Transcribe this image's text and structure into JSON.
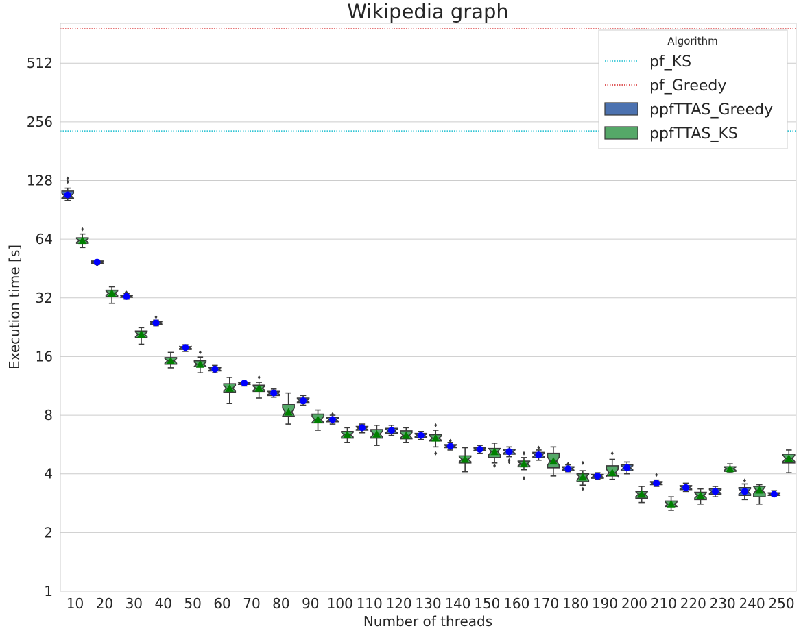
{
  "chart_data": {
    "type": "box",
    "title": "Wikipedia graph",
    "xlabel": "Number of threads",
    "ylabel": "Execution time [s]",
    "yscale": "log2",
    "ylim": [
      1,
      820
    ],
    "yticks": [
      1,
      2,
      4,
      8,
      16,
      32,
      64,
      128,
      256,
      512
    ],
    "ytick_labels": [
      "1",
      "2",
      "4",
      "8",
      "16",
      "32",
      "64",
      "128",
      "256",
      "512"
    ],
    "grid": "horizontal",
    "categories": [
      "10",
      "20",
      "30",
      "40",
      "50",
      "60",
      "70",
      "80",
      "90",
      "100",
      "110",
      "120",
      "130",
      "140",
      "150",
      "160",
      "170",
      "180",
      "190",
      "200",
      "210",
      "220",
      "230",
      "240",
      "250"
    ],
    "legend": {
      "title": "Algorithm",
      "placement": "top-right",
      "entries": [
        {
          "label": "pf_KS",
          "kind": "dotted-line",
          "color": "#17becf"
        },
        {
          "label": "pf_Greedy",
          "kind": "dotted-line",
          "color": "#d62728"
        },
        {
          "label": "ppfTTAS_Greedy",
          "kind": "box",
          "color": "#4c72b0"
        },
        {
          "label": "ppfTTAS_KS",
          "kind": "box",
          "color": "#55a868"
        }
      ]
    },
    "reference_lines": [
      {
        "name": "pf_KS",
        "value": 230,
        "color": "#17becf"
      },
      {
        "name": "pf_Greedy",
        "value": 768,
        "color": "#d62728"
      }
    ],
    "series": [
      {
        "name": "ppfTTAS_Greedy",
        "box_color": "#4c72b0",
        "mean_color": "#0000ff",
        "mean_marker": "circle",
        "boxes": [
          {
            "cat": "10",
            "whislo": 101,
            "q1": 104,
            "med": 107,
            "q3": 113,
            "whishi": 117,
            "mean": 108,
            "outliers": [
              126,
              131
            ]
          },
          {
            "cat": "20",
            "whislo": 47.5,
            "q1": 48,
            "med": 48.8,
            "q3": 49.5,
            "whishi": 50,
            "mean": 48.8,
            "outliers": [
              47.2
            ]
          },
          {
            "cat": "30",
            "whislo": 31.5,
            "q1": 32.2,
            "med": 32.5,
            "q3": 33,
            "whishi": 33.6,
            "mean": 32.5,
            "outliers": [
              34
            ]
          },
          {
            "cat": "40",
            "whislo": 23,
            "q1": 23.3,
            "med": 23.8,
            "q3": 24.2,
            "whishi": 24.6,
            "mean": 23.8,
            "outliers": [
              25.5
            ]
          },
          {
            "cat": "50",
            "whislo": 17,
            "q1": 17.4,
            "med": 17.8,
            "q3": 18,
            "whishi": 18.4,
            "mean": 17.8,
            "outliers": []
          },
          {
            "cat": "60",
            "whislo": 13.2,
            "q1": 13.5,
            "med": 13.8,
            "q3": 14.1,
            "whishi": 14.4,
            "mean": 13.8,
            "outliers": []
          },
          {
            "cat": "70",
            "whislo": 11.3,
            "q1": 11.5,
            "med": 11.7,
            "q3": 11.8,
            "whishi": 11.9,
            "mean": 11.7,
            "outliers": []
          },
          {
            "cat": "80",
            "whislo": 9.9,
            "q1": 10.1,
            "med": 10.4,
            "q3": 10.6,
            "whishi": 10.9,
            "mean": 10.4,
            "outliers": []
          },
          {
            "cat": "90",
            "whislo": 9,
            "q1": 9.3,
            "med": 9.5,
            "q3": 9.8,
            "whishi": 10.1,
            "mean": 9.5,
            "outliers": []
          },
          {
            "cat": "100",
            "whislo": 7.2,
            "q1": 7.4,
            "med": 7.6,
            "q3": 7.8,
            "whishi": 8,
            "mean": 7.6,
            "outliers": [
              8.1
            ]
          },
          {
            "cat": "110",
            "whislo": 6.5,
            "q1": 6.7,
            "med": 6.85,
            "q3": 7,
            "whishi": 7.2,
            "mean": 6.9,
            "outliers": []
          },
          {
            "cat": "120",
            "whislo": 6.3,
            "q1": 6.45,
            "med": 6.65,
            "q3": 6.85,
            "whishi": 7.1,
            "mean": 6.7,
            "outliers": []
          },
          {
            "cat": "130",
            "whislo": 6,
            "q1": 6.15,
            "med": 6.3,
            "q3": 6.45,
            "whishi": 6.6,
            "mean": 6.3,
            "outliers": []
          },
          {
            "cat": "140",
            "whislo": 5.3,
            "q1": 5.45,
            "med": 5.55,
            "q3": 5.65,
            "whishi": 5.8,
            "mean": 5.55,
            "outliers": [
              5.9
            ]
          },
          {
            "cat": "150",
            "whislo": 5.1,
            "q1": 5.25,
            "med": 5.35,
            "q3": 5.45,
            "whishi": 5.6,
            "mean": 5.35,
            "outliers": []
          },
          {
            "cat": "160",
            "whislo": 4.9,
            "q1": 5.05,
            "med": 5.2,
            "q3": 5.35,
            "whishi": 5.5,
            "mean": 5.2,
            "outliers": [
              4.7,
              4.6
            ]
          },
          {
            "cat": "170",
            "whislo": 4.7,
            "q1": 4.85,
            "med": 5,
            "q3": 5.15,
            "whishi": 5.3,
            "mean": 5,
            "outliers": [
              5.45
            ]
          },
          {
            "cat": "180",
            "whislo": 4.1,
            "q1": 4.15,
            "med": 4.25,
            "q3": 4.35,
            "whishi": 4.45,
            "mean": 4.25,
            "outliers": [
              4.5
            ]
          },
          {
            "cat": "190",
            "whislo": 3.75,
            "q1": 3.8,
            "med": 3.9,
            "q3": 3.97,
            "whishi": 4.05,
            "mean": 3.9,
            "outliers": []
          },
          {
            "cat": "200",
            "whislo": 4,
            "q1": 4.15,
            "med": 4.3,
            "q3": 4.45,
            "whishi": 4.6,
            "mean": 4.3,
            "outliers": []
          },
          {
            "cat": "210",
            "whislo": 3.45,
            "q1": 3.52,
            "med": 3.58,
            "q3": 3.65,
            "whishi": 3.72,
            "mean": 3.58,
            "outliers": [
              3.95
            ]
          },
          {
            "cat": "220",
            "whislo": 3.25,
            "q1": 3.32,
            "med": 3.4,
            "q3": 3.48,
            "whishi": 3.58,
            "mean": 3.4,
            "outliers": []
          },
          {
            "cat": "230",
            "whislo": 3.05,
            "q1": 3.15,
            "med": 3.25,
            "q3": 3.35,
            "whishi": 3.45,
            "mean": 3.25,
            "outliers": []
          },
          {
            "cat": "240",
            "whislo": 2.95,
            "q1": 3.1,
            "med": 3.25,
            "q3": 3.4,
            "whishi": 3.55,
            "mean": 3.25,
            "outliers": [
              3.7
            ]
          },
          {
            "cat": "250",
            "whislo": 3.05,
            "q1": 3.1,
            "med": 3.15,
            "q3": 3.2,
            "whishi": 3.28,
            "mean": 3.15,
            "outliers": []
          }
        ]
      },
      {
        "name": "ppfTTAS_KS",
        "box_color": "#55a868",
        "mean_color": "#008000",
        "mean_marker": "triangle",
        "boxes": [
          {
            "cat": "10",
            "whislo": 58,
            "q1": 61,
            "med": 63,
            "q3": 65,
            "whishi": 68,
            "mean": 63,
            "outliers": [
              72
            ]
          },
          {
            "cat": "20",
            "whislo": 30,
            "q1": 32.5,
            "med": 33.8,
            "q3": 35,
            "whishi": 36.5,
            "mean": 33.8,
            "outliers": []
          },
          {
            "cat": "30",
            "whislo": 18.5,
            "q1": 20,
            "med": 20.8,
            "q3": 21.6,
            "whishi": 22.5,
            "mean": 20.8,
            "outliers": []
          },
          {
            "cat": "40",
            "whislo": 14,
            "q1": 14.6,
            "med": 15.2,
            "q3": 15.8,
            "whishi": 16.8,
            "mean": 15.2,
            "outliers": []
          },
          {
            "cat": "50",
            "whislo": 13.2,
            "q1": 14.2,
            "med": 14.6,
            "q3": 15.2,
            "whishi": 15.9,
            "mean": 14.6,
            "outliers": [
              16.8
            ]
          },
          {
            "cat": "60",
            "whislo": 9.2,
            "q1": 10.5,
            "med": 11,
            "q3": 11.6,
            "whishi": 12.5,
            "mean": 11,
            "outliers": []
          },
          {
            "cat": "70",
            "whislo": 9.8,
            "q1": 10.6,
            "med": 11,
            "q3": 11.4,
            "whishi": 11.8,
            "mean": 11,
            "outliers": [
              12.5
            ]
          },
          {
            "cat": "80",
            "whislo": 7.2,
            "q1": 7.9,
            "med": 8.3,
            "q3": 9.1,
            "whishi": 10.4,
            "mean": 8.3,
            "outliers": []
          },
          {
            "cat": "90",
            "whislo": 6.7,
            "q1": 7.3,
            "med": 7.6,
            "q3": 8.1,
            "whishi": 8.5,
            "mean": 7.6,
            "outliers": []
          },
          {
            "cat": "100",
            "whislo": 5.8,
            "q1": 6.1,
            "med": 6.35,
            "q3": 6.6,
            "whishi": 6.9,
            "mean": 6.35,
            "outliers": []
          },
          {
            "cat": "110",
            "whislo": 5.6,
            "q1": 6.1,
            "med": 6.4,
            "q3": 6.75,
            "whishi": 7.1,
            "mean": 6.4,
            "outliers": []
          },
          {
            "cat": "120",
            "whislo": 5.8,
            "q1": 6.05,
            "med": 6.3,
            "q3": 6.65,
            "whishi": 6.9,
            "mean": 6.3,
            "outliers": []
          },
          {
            "cat": "130",
            "whislo": 5.5,
            "q1": 5.9,
            "med": 6.1,
            "q3": 6.35,
            "whishi": 6.7,
            "mean": 6.1,
            "outliers": [
              5.1,
              7.1
            ]
          },
          {
            "cat": "140",
            "whislo": 4.1,
            "q1": 4.55,
            "med": 4.75,
            "q3": 4.95,
            "whishi": 5.45,
            "mean": 4.75,
            "outliers": []
          },
          {
            "cat": "150",
            "whislo": 4.55,
            "q1": 4.85,
            "med": 5.2,
            "q3": 5.4,
            "whishi": 5.75,
            "mean": 5.2,
            "outliers": [
              4.4
            ]
          },
          {
            "cat": "160",
            "whislo": 4.2,
            "q1": 4.35,
            "med": 4.5,
            "q3": 4.65,
            "whishi": 4.85,
            "mean": 4.5,
            "outliers": [
              3.8,
              5.1
            ]
          },
          {
            "cat": "170",
            "whislo": 3.9,
            "q1": 4.3,
            "med": 4.65,
            "q3": 5.1,
            "whishi": 5.5,
            "mean": 4.65,
            "outliers": []
          },
          {
            "cat": "180",
            "whislo": 3.5,
            "q1": 3.65,
            "med": 3.85,
            "q3": 4,
            "whishi": 4.15,
            "mean": 3.85,
            "outliers": [
              3.35,
              4.55
            ]
          },
          {
            "cat": "190",
            "whislo": 3.75,
            "q1": 3.9,
            "med": 4.05,
            "q3": 4.4,
            "whishi": 4.75,
            "mean": 4.05,
            "outliers": [
              5.1
            ]
          },
          {
            "cat": "200",
            "whislo": 2.85,
            "q1": 3,
            "med": 3.15,
            "q3": 3.25,
            "whishi": 3.45,
            "mean": 3.15,
            "outliers": []
          },
          {
            "cat": "210",
            "whislo": 2.6,
            "q1": 2.72,
            "med": 2.8,
            "q3": 2.9,
            "whishi": 3.05,
            "mean": 2.8,
            "outliers": []
          },
          {
            "cat": "220",
            "whislo": 2.8,
            "q1": 2.95,
            "med": 3.1,
            "q3": 3.22,
            "whishi": 3.35,
            "mean": 3.1,
            "outliers": []
          },
          {
            "cat": "230",
            "whislo": 4.05,
            "q1": 4.12,
            "med": 4.25,
            "q3": 4.35,
            "whishi": 4.5,
            "mean": 4.25,
            "outliers": []
          },
          {
            "cat": "240",
            "whislo": 2.8,
            "q1": 3.05,
            "med": 3.3,
            "q3": 3.45,
            "whishi": 3.52,
            "mean": 3.3,
            "outliers": []
          },
          {
            "cat": "250",
            "whislo": 4.05,
            "q1": 4.55,
            "med": 4.8,
            "q3": 5.05,
            "whishi": 5.3,
            "mean": 4.8,
            "outliers": []
          }
        ]
      }
    ]
  }
}
